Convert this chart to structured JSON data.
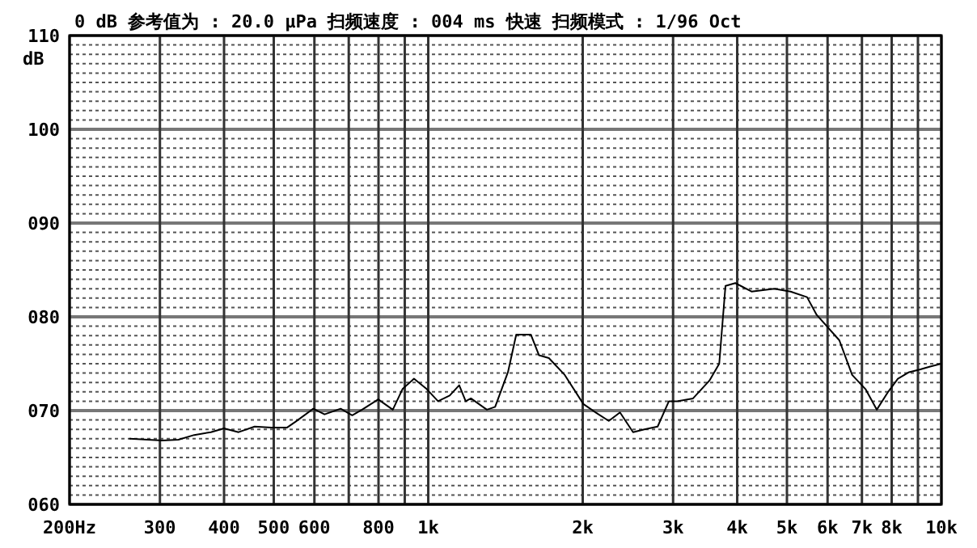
{
  "chart_data": {
    "type": "line",
    "title": "0 dB 参考值为 : 20.0 μPa     扫频速度 : 004 ms 快速   扫频模式 : 1/96  Oct",
    "ylabel": "dB",
    "log": "x",
    "grid": true,
    "line_style": "solid",
    "x": [
      262,
      303,
      326,
      350,
      377,
      400,
      427,
      459,
      494,
      531,
      551,
      597,
      628,
      675,
      711,
      743,
      799,
      853,
      891,
      938,
      993,
      1045,
      1101,
      1149,
      1183,
      1211,
      1301,
      1350,
      1430,
      1484,
      1585,
      1644,
      1718,
      1845,
      2006,
      2120,
      2248,
      2364,
      2507,
      2637,
      2799,
      2944,
      3055,
      3281,
      3531,
      3690,
      3795,
      3966,
      4266,
      4724,
      5082,
      5472,
      5715,
      6325,
      6700,
      7112,
      7482,
      7874,
      8224,
      8651,
      9099,
      9509,
      9990
    ],
    "series": [
      {
        "color": "#000000",
        "values": [
          67.0,
          66.8,
          66.9,
          67.4,
          67.7,
          68.1,
          67.7,
          68.3,
          68.2,
          68.2,
          68.8,
          70.2,
          69.6,
          70.2,
          69.5,
          70.1,
          71.2,
          70.1,
          72.3,
          73.4,
          72.3,
          71.0,
          71.6,
          72.7,
          71.0,
          71.3,
          70.1,
          70.4,
          74.1,
          78.1,
          78.1,
          75.9,
          75.6,
          73.8,
          70.7,
          69.8,
          68.9,
          69.8,
          67.7,
          68.0,
          68.3,
          71.0,
          71.0,
          71.3,
          73.2,
          75.0,
          83.3,
          83.6,
          82.7,
          83.0,
          82.7,
          82.1,
          80.2,
          77.5,
          73.8,
          72.3,
          70.1,
          72.0,
          73.4,
          74.1,
          74.4,
          74.7,
          75.0
        ]
      }
    ],
    "xlim": [
      200,
      10000
    ],
    "ylim": [
      60,
      110
    ],
    "xticks": [
      {
        "value": 200,
        "label": "200Hz"
      },
      300,
      400,
      500,
      600,
      {
        "value": 700,
        "label": null
      },
      800,
      {
        "value": 900,
        "label": null
      },
      {
        "value": 1000,
        "label": "1k"
      },
      {
        "value": 2000,
        "label": "2k"
      },
      {
        "value": 3000,
        "label": "3k"
      },
      {
        "value": 4000,
        "label": "4k"
      },
      {
        "value": 5000,
        "label": "5k"
      },
      {
        "value": 6000,
        "label": "6k"
      },
      {
        "value": 7000,
        "label": "7k"
      },
      {
        "value": 8000,
        "label": "8k"
      },
      {
        "value": 9000,
        "label": null
      },
      {
        "value": 10000,
        "label": "10k"
      }
    ],
    "yticks": [
      {
        "value": 60,
        "label": "060"
      },
      {
        "value": 61,
        "label": null
      },
      {
        "value": 62,
        "label": null
      },
      {
        "value": 63,
        "label": null
      },
      {
        "value": 64,
        "label": null
      },
      {
        "value": 65,
        "label": null
      },
      {
        "value": 66,
        "label": null
      },
      {
        "value": 67,
        "label": null
      },
      {
        "value": 68,
        "label": null
      },
      {
        "value": 69,
        "label": null
      },
      {
        "value": 70,
        "label": "070"
      },
      {
        "value": 71,
        "label": null
      },
      {
        "value": 72,
        "label": null
      },
      {
        "value": 73,
        "label": null
      },
      {
        "value": 74,
        "label": null
      },
      {
        "value": 75,
        "label": null
      },
      {
        "value": 76,
        "label": null
      },
      {
        "value": 77,
        "label": null
      },
      {
        "value": 78,
        "label": null
      },
      {
        "value": 79,
        "label": null
      },
      {
        "value": 80,
        "label": "080"
      },
      {
        "value": 81,
        "label": null
      },
      {
        "value": 82,
        "label": null
      },
      {
        "value": 83,
        "label": null
      },
      {
        "value": 84,
        "label": null
      },
      {
        "value": 85,
        "label": null
      },
      {
        "value": 86,
        "label": null
      },
      {
        "value": 87,
        "label": null
      },
      {
        "value": 88,
        "label": null
      },
      {
        "value": 89,
        "label": null
      },
      {
        "value": 90,
        "label": "090"
      },
      {
        "value": 91,
        "label": null
      },
      {
        "value": 92,
        "label": null
      },
      {
        "value": 93,
        "label": null
      },
      {
        "value": 94,
        "label": null
      },
      {
        "value": 95,
        "label": null
      },
      {
        "value": 96,
        "label": null
      },
      {
        "value": 97,
        "label": null
      },
      {
        "value": 98,
        "label": null
      },
      {
        "value": 99,
        "label": null
      },
      {
        "value": 100,
        "label": "100"
      },
      {
        "value": 101,
        "label": null
      },
      {
        "value": 102,
        "label": null
      },
      {
        "value": 103,
        "label": null
      },
      {
        "value": 104,
        "label": null
      },
      {
        "value": 105,
        "label": null
      },
      {
        "value": 106,
        "label": null
      },
      {
        "value": 107,
        "label": null
      },
      {
        "value": 108,
        "label": null
      },
      {
        "value": 109,
        "label": null
      },
      {
        "value": 110,
        "label": "110"
      }
    ]
  }
}
